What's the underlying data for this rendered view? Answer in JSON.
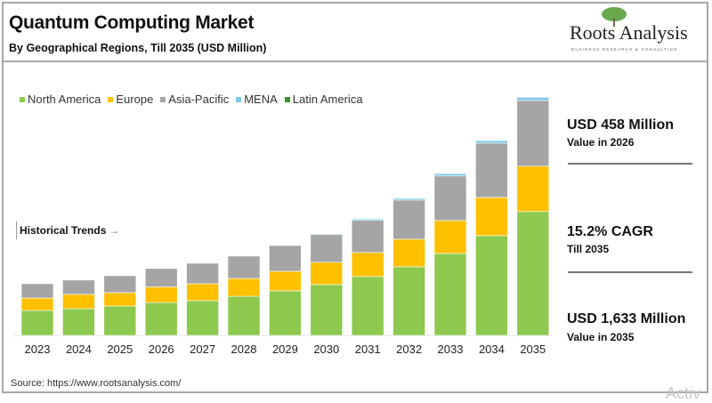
{
  "header": {
    "title": "Quantum Computing Market",
    "subtitle": "By Geographical Regions, Till 2035 (USD Million)",
    "logo_text": "Roots Analysis",
    "logo_tagline": "BUSINESS RESEARCH & CONSULTING"
  },
  "annotation": {
    "historical_trends": "Historical Trends",
    "arrow": "→"
  },
  "stats": [
    {
      "value": "USD 458 Million",
      "label": "Value in 2026"
    },
    {
      "value": "15.2% CAGR",
      "label": "Till 2035"
    },
    {
      "value": "USD 1,633 Million",
      "label": "Value in 2035"
    }
  ],
  "source": "Source: https://www.rootsanalysis.com/",
  "watermark": "Activ",
  "chart_data": {
    "type": "bar",
    "stacked": true,
    "title": "Quantum Computing Market",
    "subtitle": "By Geographical Regions, Till 2035 (USD Million)",
    "legend_position": "top-left",
    "grid": false,
    "y_axis_shown": false,
    "ylim": [
      0,
      1700
    ],
    "categories": [
      "2023",
      "2024",
      "2025",
      "2026",
      "2027",
      "2028",
      "2029",
      "2030",
      "2031",
      "2032",
      "2033",
      "2034",
      "2035"
    ],
    "series": [
      {
        "name": "North America",
        "color": "#8dc94e",
        "values": [
          171,
          183,
          201,
          225,
          238,
          268,
          305,
          348,
          403,
          470,
          561,
          683,
          848
        ]
      },
      {
        "name": "Europe",
        "color": "#ffc000",
        "values": [
          85,
          98,
          92,
          107,
          116,
          122,
          134,
          153,
          165,
          189,
          226,
          262,
          311
        ]
      },
      {
        "name": "Asia-Pacific",
        "color": "#a5a5a5",
        "values": [
          98,
          98,
          116,
          126,
          140,
          153,
          177,
          189,
          220,
          268,
          305,
          372,
          450
        ]
      },
      {
        "name": "MENA",
        "color": "#7cc7e3",
        "values": [
          0,
          0,
          0,
          0,
          0,
          0,
          0,
          6,
          10,
          12,
          16,
          18,
          22
        ]
      },
      {
        "name": "Latin America",
        "color": "#3e8f2e",
        "values": [
          0,
          0,
          0,
          0,
          0,
          0,
          0,
          1,
          1,
          1,
          2,
          2,
          2
        ]
      }
    ]
  }
}
